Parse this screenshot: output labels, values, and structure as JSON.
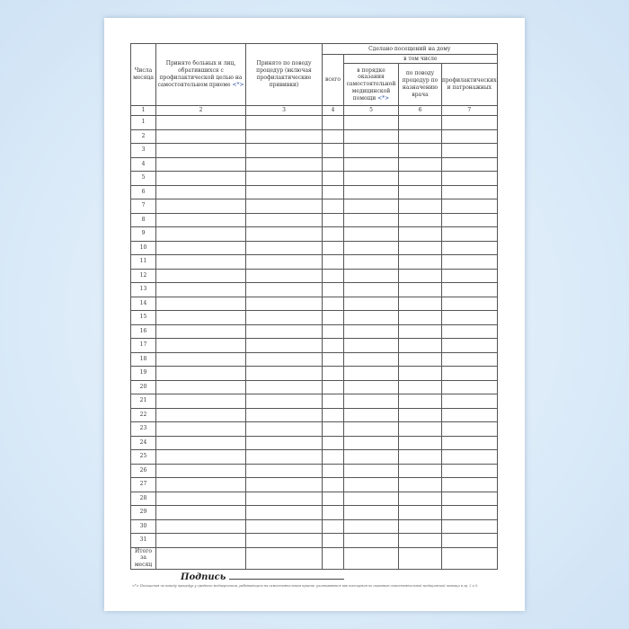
{
  "header": {
    "col1": "Числа месяца",
    "col2": "Принято больных и лиц, обратившихся с профилактической целью на самостоятельном приеме",
    "col2_mark": "<*>",
    "col3": "Принято по поводу процедур (включая профилактические прививки)",
    "home_visits": "Сделано посещений на дому",
    "total": "всего",
    "including": "в том числе",
    "col5": "в порядке оказания самостоятельной медицинской помощи",
    "col5_mark": "<*>",
    "col6": "по поводу процедур по назначению врача",
    "col7": "профилактических и патронажных"
  },
  "column_numbers": [
    "1",
    "2",
    "3",
    "4",
    "5",
    "6",
    "7"
  ],
  "days": [
    "1",
    "2",
    "3",
    "4",
    "5",
    "6",
    "7",
    "8",
    "9",
    "10",
    "11",
    "12",
    "13",
    "14",
    "15",
    "16",
    "17",
    "18",
    "19",
    "20",
    "21",
    "22",
    "23",
    "24",
    "25",
    "26",
    "27",
    "28",
    "29",
    "30",
    "31"
  ],
  "total_row": "Итого за месяц",
  "signature_label": "Подпись",
  "footnote": "<*> Посещения по поводу процедур у среднего медперсонала, работающего на самостоятельном приеме, учитываются как посещения по оказанию самостоятельной медицинской помощи в гр. 2 и 5."
}
